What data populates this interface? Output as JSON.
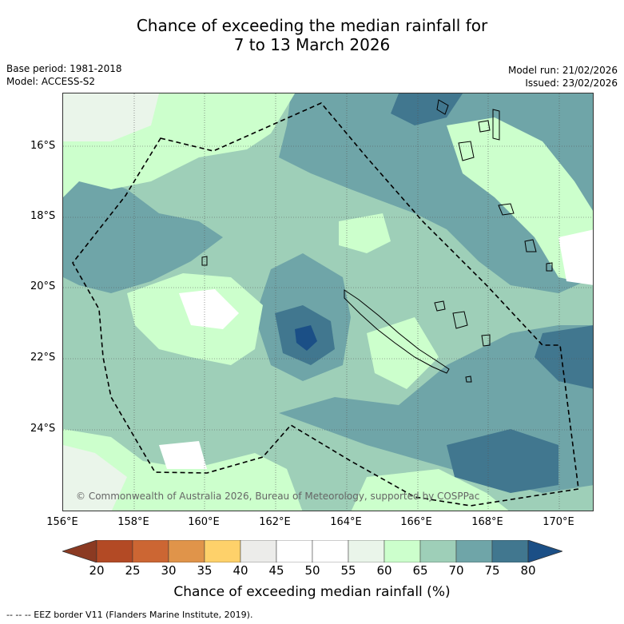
{
  "header": {
    "title_line1": "Chance of exceeding the median rainfall for",
    "title_line2": "7 to 13 March 2026",
    "base_period": "Base period: 1981-2018",
    "model": "Model: ACCESS-S2",
    "model_run": "Model run: 21/02/2026",
    "issued": "Issued: 23/02/2026"
  },
  "map": {
    "lat_labels": [
      "16°S",
      "18°S",
      "20°S",
      "22°S",
      "24°S"
    ],
    "lon_labels": [
      "156°E",
      "158°E",
      "160°E",
      "162°E",
      "164°E",
      "166°E",
      "168°E",
      "170°E"
    ],
    "copyright": "© Commonwealth of Australia 2026, Bureau of Meteorology, supported by COSPPac"
  },
  "colorbar": {
    "ticks": [
      "20",
      "25",
      "30",
      "35",
      "40",
      "45",
      "50",
      "55",
      "60",
      "65",
      "70",
      "75",
      "80"
    ],
    "label": "Chance of exceeding median rainfall (%)",
    "colors": {
      "below20": "#8b3a22",
      "c20_25": "#b34a25",
      "c25_30": "#cc6633",
      "c30_35": "#e0944a",
      "c35_40": "#fed16a",
      "c40_45": "#ececea",
      "c45_50": "#ffffff",
      "c50_55": "#ffffff",
      "c55_60": "#eaf5ea",
      "c60_65": "#ccffcc",
      "c65_70": "#9ecfb8",
      "c70_75": "#6fa5a8",
      "c75_80": "#41778f",
      "above80": "#1b4f86"
    }
  },
  "footer": {
    "legend": "--  --  -- EEZ border V11 (Flanders Marine Institute, 2019)."
  }
}
